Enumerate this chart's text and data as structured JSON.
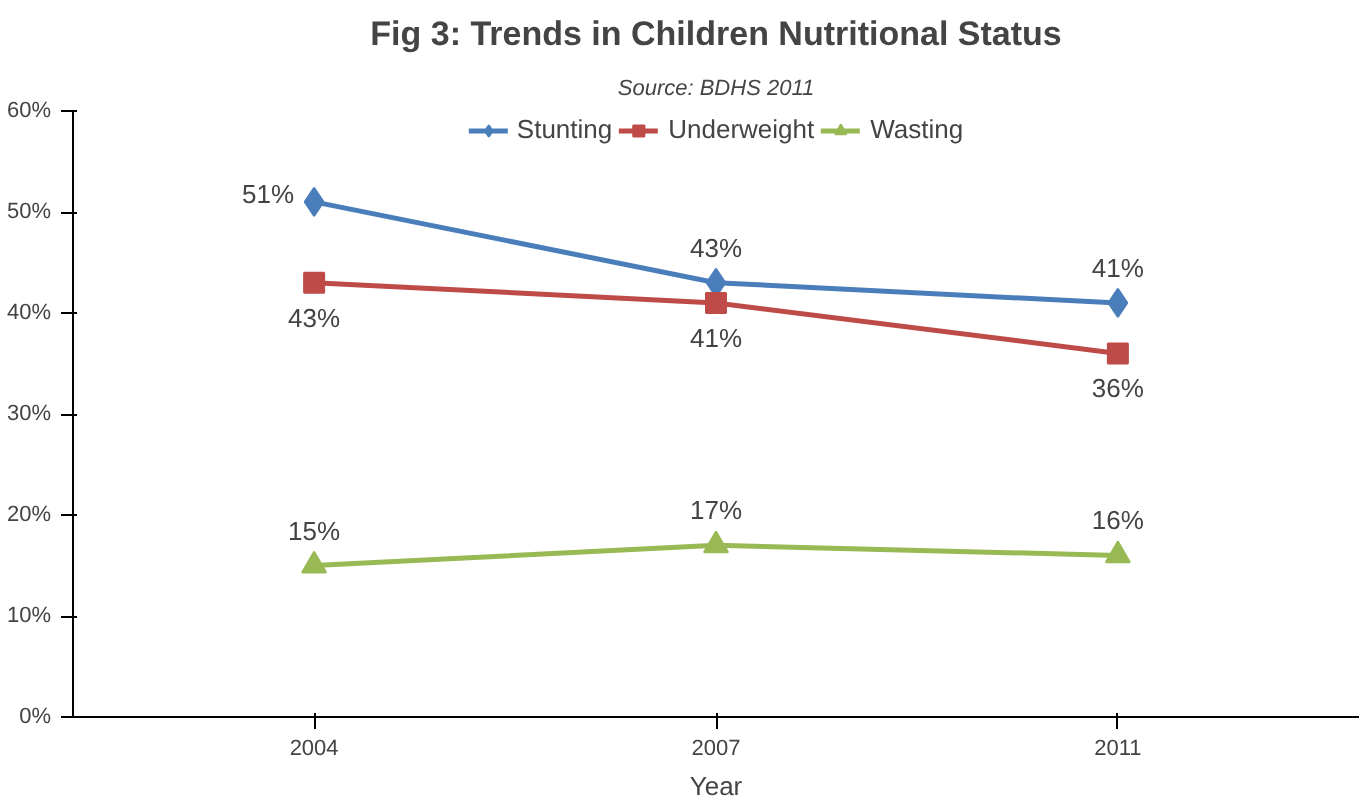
{
  "chart_data": {
    "type": "line",
    "title": "Fig 3: Trends in Children Nutritional Status",
    "xlabel": "Year",
    "annotations": [
      "Source: BDHS 2011"
    ],
    "categories": [
      "2004",
      "2007",
      "2011"
    ],
    "series": [
      {
        "name": "Stunting",
        "color": "#4a7ebb",
        "marker": "diamond",
        "values": [
          51,
          43,
          41
        ],
        "value_labels": [
          "51%",
          "43%",
          "41%"
        ]
      },
      {
        "name": "Underweight",
        "color": "#be4b48",
        "marker": "square",
        "values": [
          43,
          41,
          36
        ],
        "value_labels": [
          "43%",
          "41%",
          "36%"
        ]
      },
      {
        "name": "Wasting",
        "color": "#98b954",
        "marker": "triangle",
        "values": [
          15,
          17,
          16
        ],
        "value_labels": [
          "15%",
          "17%",
          "16%"
        ]
      }
    ],
    "ylim": [
      0,
      60
    ],
    "yticks": [
      {
        "value": 0,
        "label": "0%"
      },
      {
        "value": 10,
        "label": "10%"
      },
      {
        "value": 20,
        "label": "20%"
      },
      {
        "value": 30,
        "label": "30%"
      },
      {
        "value": 40,
        "label": "40%"
      },
      {
        "value": 50,
        "label": "50%"
      },
      {
        "value": 60,
        "label": "60%"
      }
    ],
    "grid": false,
    "legend": "top"
  }
}
